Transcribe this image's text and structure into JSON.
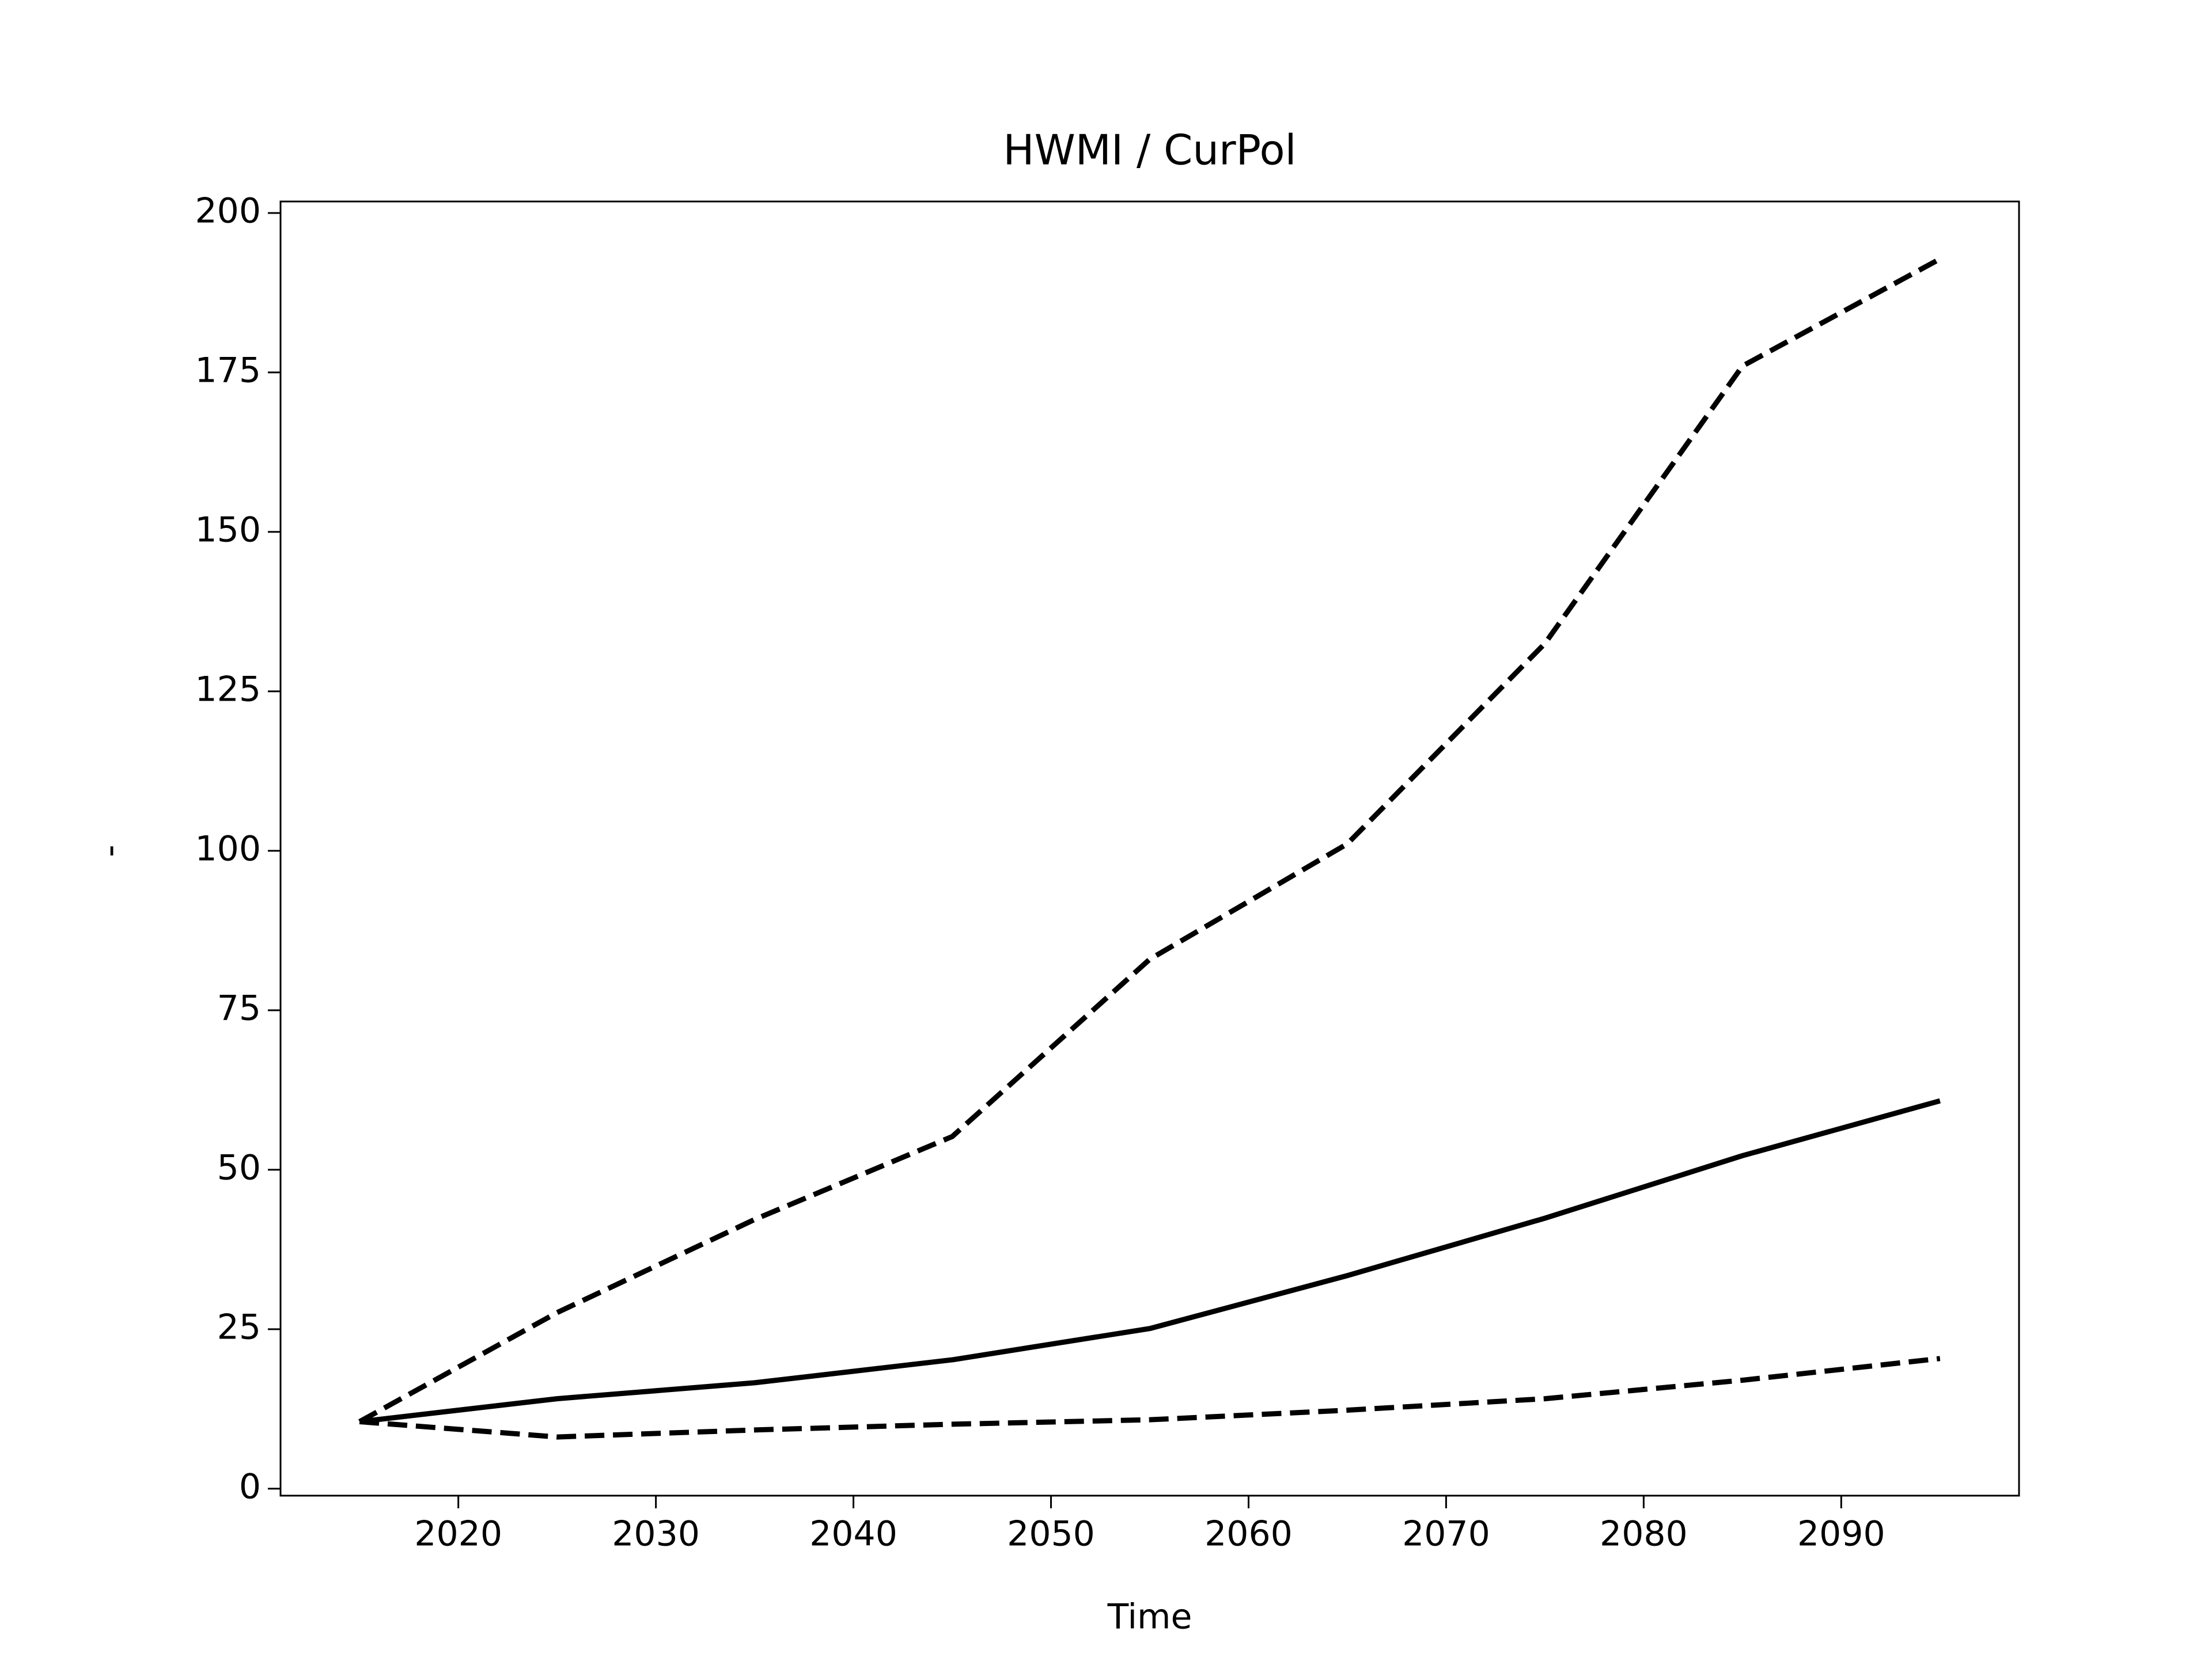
{
  "chart_data": {
    "type": "line",
    "title": "HWMI / CurPol",
    "x_label": "Time",
    "y_label": "-",
    "x": [
      2015,
      2025,
      2035,
      2045,
      2055,
      2065,
      2075,
      2085,
      2095
    ],
    "series": [
      {
        "color": "#000000",
        "line_style": "dashed",
        "values": [
          10.5,
          27.6,
          42.2,
          55.2,
          83.0,
          101.1,
          132.5,
          176.0,
          192.8
        ]
      },
      {
        "color": "#000000",
        "line_style": "solid",
        "values": [
          10.5,
          14.1,
          16.6,
          20.2,
          25.1,
          33.4,
          42.4,
          52.2,
          60.8
        ]
      },
      {
        "color": "#000000",
        "line_style": "dashed",
        "values": [
          10.5,
          8.1,
          9.2,
          10.1,
          10.8,
          12.3,
          14.1,
          17.0,
          20.4
        ]
      }
    ],
    "xlim": [
      2011,
      2099
    ],
    "ylim": [
      -1.1,
      201.8
    ],
    "xticks": [
      2020,
      2030,
      2040,
      2050,
      2060,
      2070,
      2080,
      2090
    ],
    "yticks": [
      0,
      25,
      50,
      75,
      100,
      125,
      150,
      175,
      200
    ],
    "grid": false
  }
}
